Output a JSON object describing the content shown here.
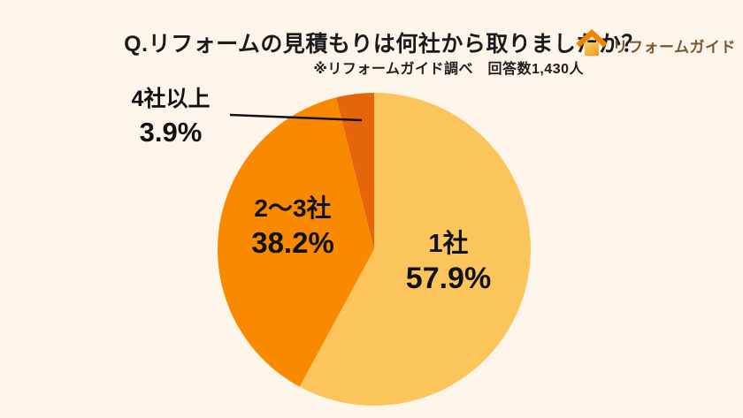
{
  "header": {
    "title": "Q.リフォームの見積もりは何社から取りましたか？",
    "note": "※リフォームガイド調べ　回答数1,430人"
  },
  "logo": {
    "text": "リフォームガイド",
    "icon": "house-icon"
  },
  "chart_data": {
    "type": "pie",
    "title": "Q.リフォームの見積もりは何社から取りましたか？",
    "note": "※リフォームガイド調べ　回答数1,430人",
    "respondents_label": "回答数1,430人",
    "start_angle_deg": 0,
    "direction": "clockwise",
    "legend_position": "inside-and-callout",
    "slices": [
      {
        "label": "1社",
        "value": 57.9,
        "pct_label": "57.9%",
        "color": "#FBC55C",
        "label_placement": "inside"
      },
      {
        "label": "2〜3社",
        "value": 38.2,
        "pct_label": "38.2%",
        "color": "#F98A00",
        "label_placement": "inside"
      },
      {
        "label": "4社以上",
        "value": 3.9,
        "pct_label": "3.9%",
        "color": "#E4650A",
        "label_placement": "outside-callout"
      }
    ],
    "colors": {
      "background": "#FDF5EA",
      "label_text": "#111111",
      "leader_line": "#111111"
    }
  }
}
